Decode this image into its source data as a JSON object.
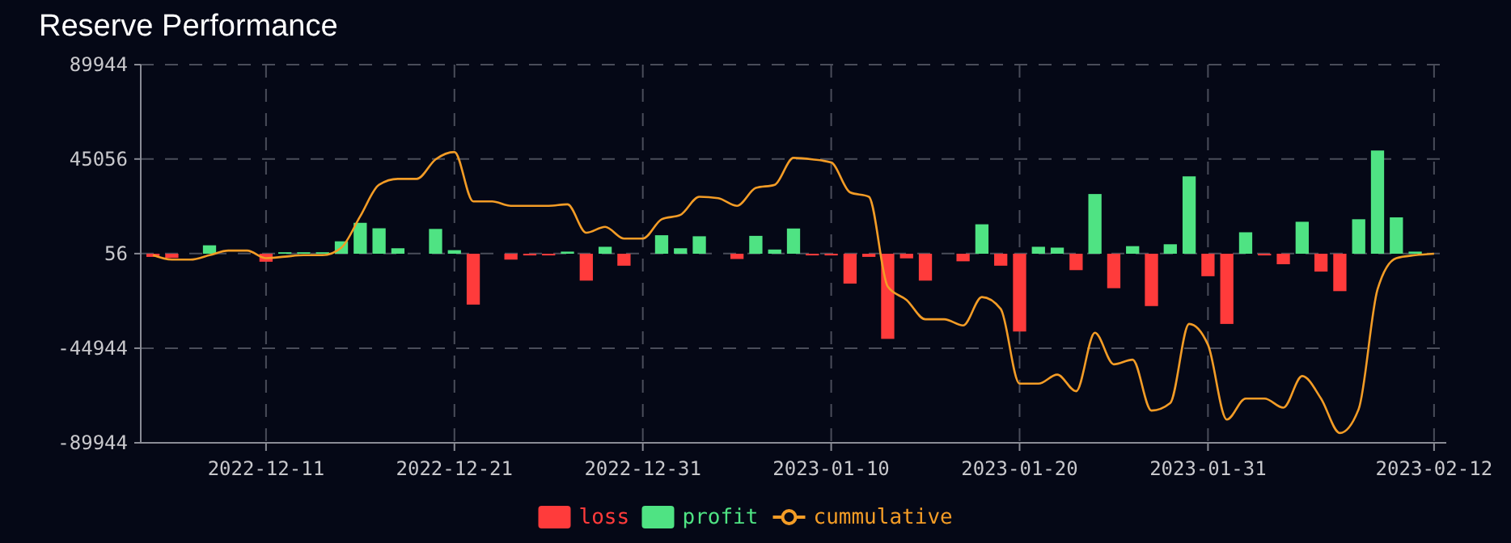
{
  "chart_data": {
    "type": "bar",
    "title": "Reserve Performance",
    "grid": true,
    "legend": "bottom",
    "categories": [
      null,
      null,
      null,
      null,
      null,
      null,
      "2022-12-11",
      null,
      null,
      null,
      null,
      null,
      null,
      null,
      null,
      null,
      "2022-12-21",
      null,
      null,
      null,
      null,
      null,
      null,
      null,
      null,
      null,
      "2022-12-31",
      null,
      null,
      null,
      null,
      null,
      null,
      null,
      null,
      null,
      "2023-01-10",
      null,
      null,
      null,
      null,
      null,
      null,
      null,
      null,
      null,
      "2023-01-20",
      null,
      null,
      null,
      null,
      null,
      null,
      null,
      null,
      null,
      "2023-01-31",
      null,
      null,
      null,
      null,
      null,
      null,
      null,
      null,
      null,
      null,
      null,
      "2023-02-12"
    ],
    "ylim": [
      -89944,
      89944
    ],
    "yticks": [
      -89944,
      -44944,
      56,
      45056,
      89944
    ],
    "series": [
      {
        "name": "loss",
        "color": "#ff3b3b",
        "values": [
          -1500,
          -2000,
          null,
          null,
          null,
          null,
          -3800,
          null,
          null,
          null,
          null,
          null,
          null,
          null,
          null,
          null,
          null,
          -24200,
          null,
          -2800,
          -800,
          -800,
          null,
          -12800,
          null,
          -5700,
          null,
          null,
          null,
          null,
          null,
          -2500,
          null,
          null,
          null,
          -800,
          -800,
          -14200,
          -1500,
          -40500,
          -2200,
          -12800,
          null,
          -3600,
          null,
          -5700,
          -37000,
          null,
          null,
          -7800,
          null,
          -16400,
          null,
          -24900,
          null,
          null,
          -10700,
          -33400,
          null,
          -800,
          -5000,
          null,
          -8500,
          -17800,
          null,
          null,
          null,
          null,
          null
        ]
      },
      {
        "name": "profit",
        "color": "#4fe383",
        "values": [
          null,
          null,
          null,
          4000,
          null,
          null,
          null,
          700,
          700,
          700,
          5900,
          14700,
          12100,
          2600,
          null,
          11800,
          1700,
          null,
          null,
          null,
          null,
          null,
          1000,
          null,
          3300,
          null,
          null,
          8800,
          2600,
          8300,
          null,
          null,
          8500,
          2000,
          12000,
          null,
          null,
          null,
          null,
          null,
          null,
          null,
          null,
          null,
          14000,
          null,
          null,
          3300,
          2900,
          null,
          28400,
          null,
          3600,
          null,
          4500,
          36800,
          null,
          null,
          10200,
          null,
          null,
          15200,
          null,
          null,
          16400,
          49100,
          17300,
          1000,
          null
        ]
      },
      {
        "name": "cummulative",
        "type": "line",
        "color": "#f39c26",
        "marker": "none",
        "values": [
          -700,
          -2800,
          -2800,
          -700,
          1500,
          1500,
          -2100,
          -1400,
          -700,
          -700,
          2900,
          17800,
          32800,
          35600,
          35600,
          44900,
          48400,
          24900,
          24900,
          22800,
          22800,
          22800,
          23500,
          10000,
          12800,
          7200,
          7200,
          16400,
          18500,
          27100,
          26400,
          22800,
          31300,
          32800,
          45600,
          44900,
          43400,
          29200,
          27100,
          -15600,
          -22000,
          -31200,
          -31200,
          -34100,
          -20600,
          -26300,
          -61800,
          -61800,
          -57500,
          -65400,
          -37600,
          -52600,
          -50400,
          -74600,
          -71000,
          -33400,
          -43300,
          -78900,
          -68900,
          -68900,
          -73200,
          -58200,
          -68900,
          -85300,
          -73900,
          -17000,
          -2100,
          -700,
          0
        ]
      }
    ]
  }
}
